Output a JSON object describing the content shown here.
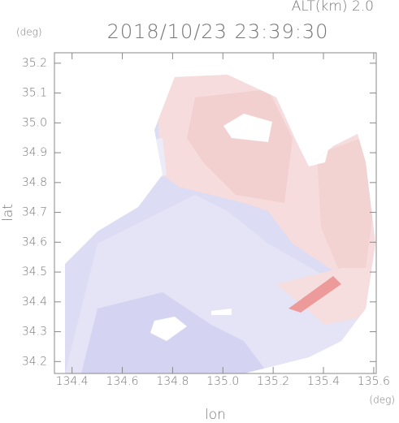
{
  "chart_data": {
    "type": "map",
    "title": "2018/10/23 23:39:30",
    "subtitle": "ALT(km) 2.0",
    "xlabel": "lon",
    "ylabel": "lat",
    "x_unit": "(deg)",
    "y_unit": "(deg)",
    "xlim": [
      134.33,
      135.61
    ],
    "ylim": [
      34.16,
      35.235
    ],
    "xticks": [
      134.4,
      134.6,
      134.8,
      {
        "value": 135,
        "label": "135.0"
      },
      135.2,
      135.4,
      135.6
    ],
    "yticks": [
      34.2,
      34.3,
      34.4,
      34.5,
      34.6,
      34.7,
      34.8,
      34.9,
      {
        "value": 35,
        "label": "35.0"
      },
      35.1,
      35.2
    ]
  }
}
